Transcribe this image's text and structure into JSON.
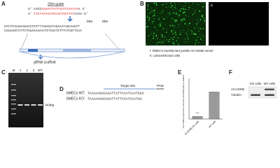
{
  "A": {
    "label": "A",
    "guide_title": "20nt guide",
    "oligo_top": [
      "5' CACC",
      "GAGATTATTACATCAATAA",
      "A 3'"
    ],
    "oligo_bottom": [
      "3' ",
      "CTCTAATAATGTAGTAGTTAT",
      "CAAA 5'"
    ],
    "enzymes": [
      "BbsI",
      "BbsI"
    ],
    "vector_top": "GTCTTCGAGAAGACCTGTTTTAGAGCTAGAAATAGCAAGTT",
    "vector_bottom": "CAGAAGCTCTTCTGGACAAAAATCTCGATCTTTATCGTTCAA",
    "scaffold": "gRNA scaffold"
  },
  "B": {
    "label": "B",
    "image_labels": [
      "I",
      "II"
    ],
    "caption": [
      "I:  bMECs transfected px458-ACADSB vector",
      "II:  untransfected cells"
    ]
  },
  "C": {
    "label": "C",
    "lanes": [
      "M",
      "1",
      "2",
      "3",
      "WT"
    ],
    "size": "344bp"
  },
  "D": {
    "label": "D",
    "target": "Target site",
    "pam": "PAM",
    "rows": [
      {
        "name": "bMECs WT:",
        "seq": "TAAAAAGGGAGATTATTACATCAATGGG"
      },
      {
        "name": "bMECs KO:",
        "seq": "TAAAAAGGGAGATTATTACATCAATGG"
      }
    ]
  },
  "E": {
    "label": "E",
    "ylabel": "The mRNA expression of bovine ACADSB gene in bMECs",
    "categories": [
      "ACADSB-KO cells",
      "WT cells"
    ],
    "values": [
      0.1,
      1.0
    ],
    "ylim": [
      0,
      1.5
    ],
    "significance": "***",
    "color": "#9a9a9a"
  },
  "F": {
    "label": "F",
    "columns": [
      "KO cells",
      "WT cells"
    ],
    "rows": [
      "ACADSB",
      "Tubulin"
    ]
  }
}
